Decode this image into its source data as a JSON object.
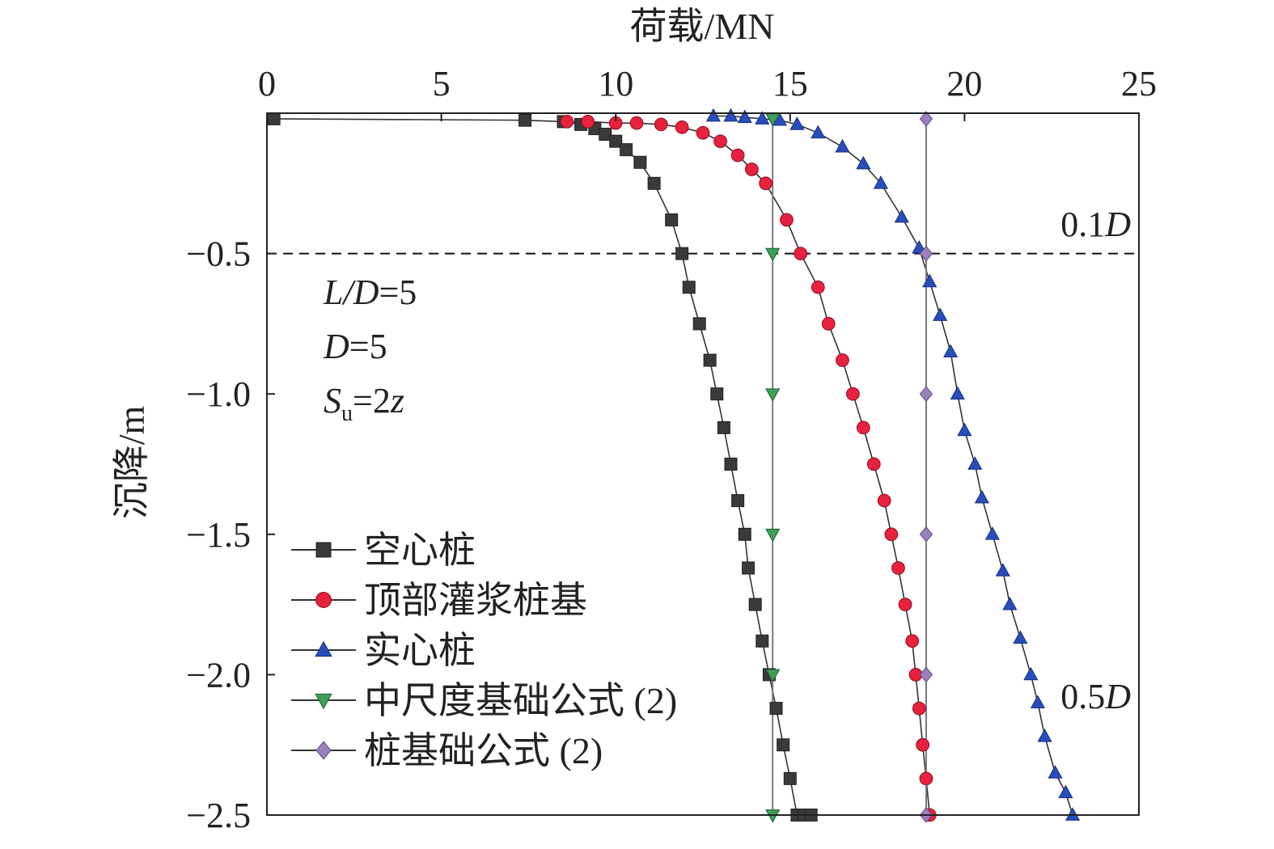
{
  "chart_data": {
    "type": "line",
    "xlabel": "荷载/MN",
    "ylabel": "沉降/m",
    "xlim": [
      0,
      25
    ],
    "ylim": [
      -2.5,
      0
    ],
    "x_axis_position": "top",
    "x_ticks": [
      0,
      5,
      10,
      15,
      20,
      25
    ],
    "y_ticks": [
      -0.5,
      -1.0,
      -1.5,
      -2.0,
      -2.5
    ],
    "x_tick_labels": [
      "0",
      "5",
      "10",
      "15",
      "20",
      "25"
    ],
    "y_tick_labels": [
      "−0.5",
      "−1.0",
      "−1.5",
      "−2.0",
      "−2.5"
    ],
    "grid": false,
    "legend_position": "bottom-left",
    "reference_line": {
      "y": -0.5,
      "style": "dashed",
      "label_num": "0.1",
      "label_var": "D"
    },
    "side_label": {
      "label_num": "0.5",
      "label_var": "D"
    },
    "annotations": {
      "line1_var": "L/D",
      "line1_val": "=5",
      "line2_var": "D",
      "line2_val": "=5",
      "line3_var": "S",
      "line3_sub": "u",
      "line3_val": "=2",
      "line3_var2": "z"
    },
    "series": [
      {
        "name": "空心桩",
        "color": "#3a3a3a",
        "marker": "square",
        "x": [
          0.2,
          7.4,
          8.5,
          9.0,
          9.4,
          9.7,
          10.0,
          10.3,
          10.7,
          11.1,
          11.6,
          11.9,
          12.1,
          12.4,
          12.7,
          12.9,
          13.1,
          13.3,
          13.5,
          13.7,
          13.8,
          14.0,
          14.2,
          14.4,
          14.6,
          14.8,
          15.0,
          15.2,
          15.4,
          15.6
        ],
        "y": [
          -0.02,
          -0.025,
          -0.03,
          -0.04,
          -0.055,
          -0.075,
          -0.1,
          -0.13,
          -0.175,
          -0.25,
          -0.38,
          -0.5,
          -0.62,
          -0.75,
          -0.88,
          -1.0,
          -1.12,
          -1.25,
          -1.38,
          -1.5,
          -1.62,
          -1.75,
          -1.88,
          -2.0,
          -2.12,
          -2.25,
          -2.37,
          -2.5,
          -2.5,
          -2.5
        ]
      },
      {
        "name": "顶部灌浆桩基",
        "color": "#e8213f",
        "marker": "circle",
        "x": [
          8.6,
          9.2,
          10.0,
          10.6,
          11.3,
          11.9,
          12.5,
          13.0,
          13.5,
          13.9,
          14.3,
          14.9,
          15.3,
          15.8,
          16.1,
          16.5,
          16.8,
          17.1,
          17.4,
          17.7,
          17.9,
          18.1,
          18.3,
          18.5,
          18.6,
          18.7,
          18.8,
          18.9,
          19.0
        ],
        "y": [
          -0.03,
          -0.03,
          -0.035,
          -0.035,
          -0.04,
          -0.05,
          -0.07,
          -0.1,
          -0.15,
          -0.2,
          -0.25,
          -0.38,
          -0.5,
          -0.62,
          -0.75,
          -0.88,
          -1.0,
          -1.12,
          -1.25,
          -1.38,
          -1.5,
          -1.62,
          -1.75,
          -1.88,
          -2.0,
          -2.12,
          -2.25,
          -2.37,
          -2.5
        ]
      },
      {
        "name": "实心桩",
        "color": "#2a4dbd",
        "marker": "triangle-up",
        "x": [
          12.8,
          13.3,
          13.7,
          14.2,
          14.7,
          15.2,
          15.8,
          16.5,
          17.1,
          17.6,
          18.2,
          18.7,
          19.0,
          19.3,
          19.6,
          19.8,
          20.0,
          20.3,
          20.5,
          20.8,
          21.1,
          21.3,
          21.6,
          21.9,
          22.1,
          22.3,
          22.6,
          22.9,
          23.1
        ],
        "y": [
          -0.01,
          -0.01,
          -0.015,
          -0.02,
          -0.025,
          -0.04,
          -0.07,
          -0.12,
          -0.18,
          -0.25,
          -0.37,
          -0.48,
          -0.6,
          -0.72,
          -0.85,
          -1.0,
          -1.13,
          -1.25,
          -1.37,
          -1.5,
          -1.63,
          -1.75,
          -1.87,
          -2.0,
          -2.1,
          -2.22,
          -2.35,
          -2.42,
          -2.5
        ]
      },
      {
        "name": "中尺度基础公式 (2)",
        "color": "#3e9e5a",
        "marker": "triangle-down",
        "x": [
          14.5,
          14.5,
          14.5,
          14.5,
          14.5,
          14.5
        ],
        "y": [
          -0.02,
          -0.5,
          -1.0,
          -1.5,
          -2.0,
          -2.5
        ]
      },
      {
        "name": "桩基础公式 (2)",
        "color": "#9c7fbf",
        "marker": "diamond",
        "x": [
          18.9,
          18.9,
          18.9,
          18.9,
          18.9,
          18.9
        ],
        "y": [
          -0.02,
          -0.5,
          -1.0,
          -1.5,
          -2.0,
          -2.5
        ]
      }
    ]
  }
}
